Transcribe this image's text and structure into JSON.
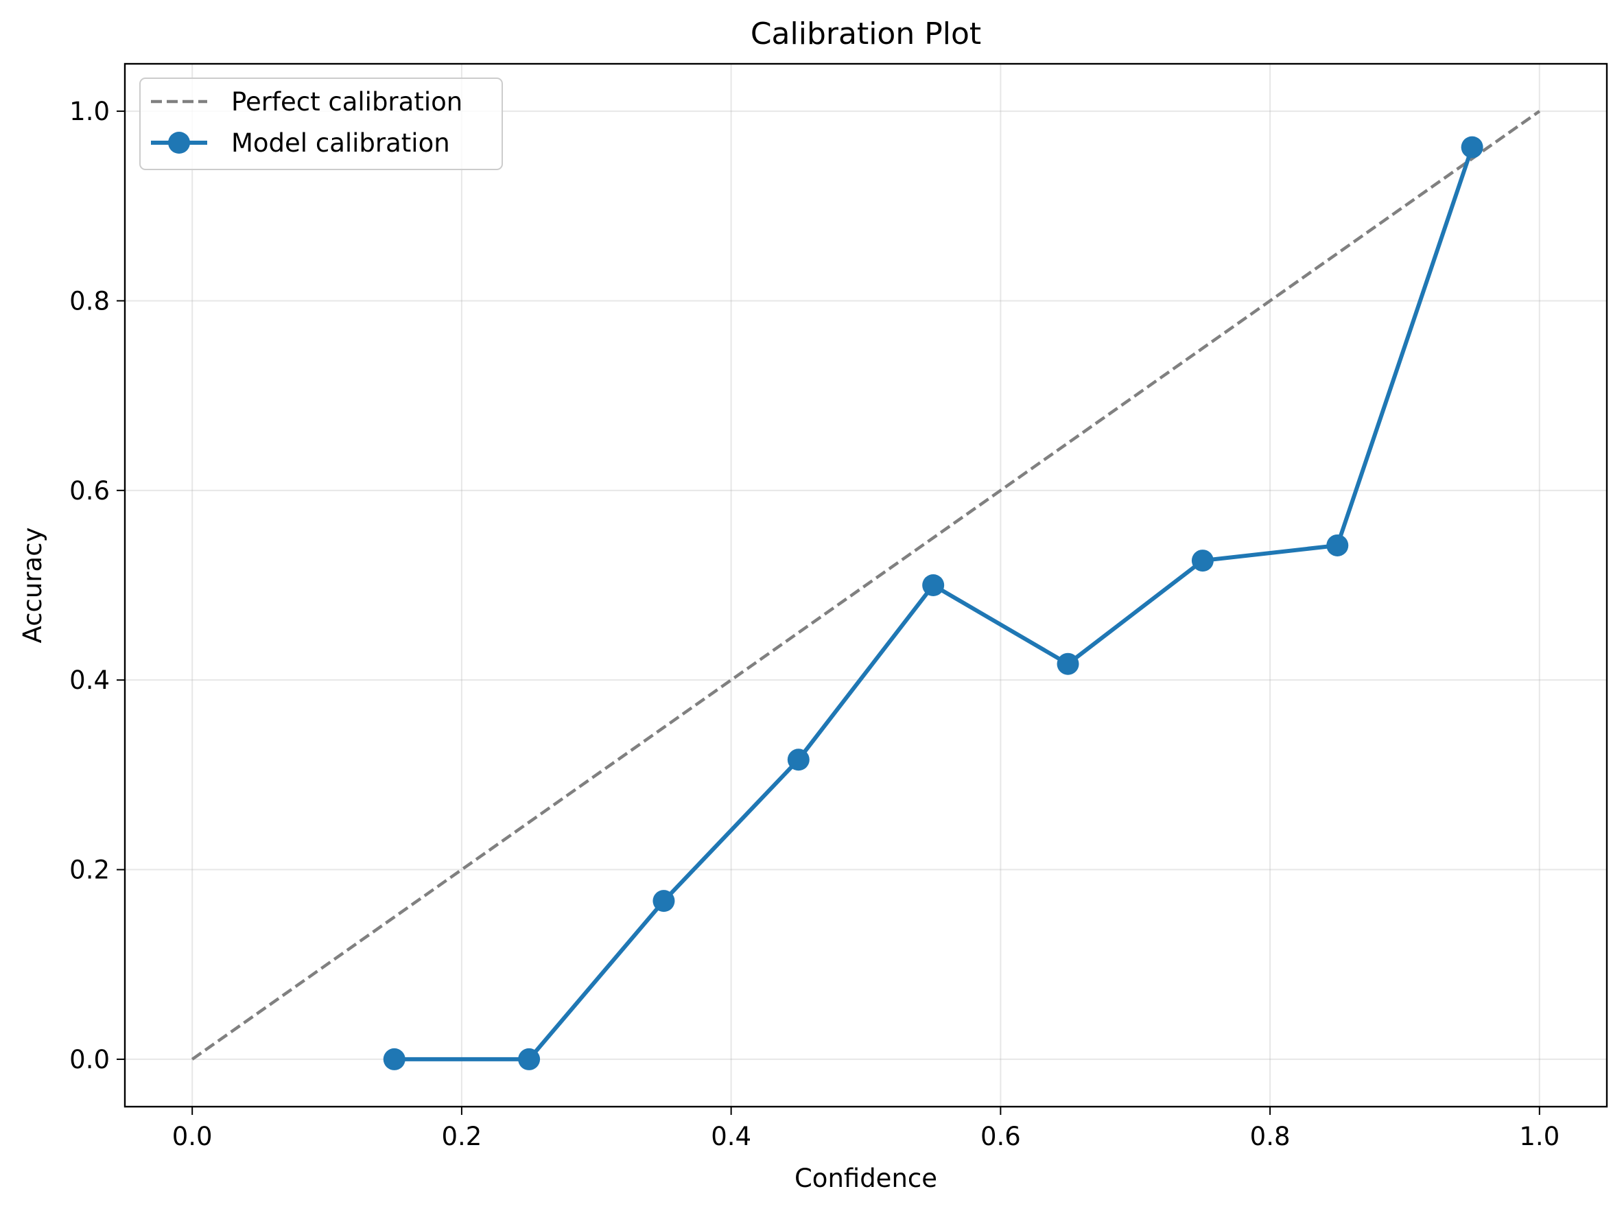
{
  "chart_data": {
    "type": "line",
    "title": "Calibration Plot",
    "xlabel": "Confidence",
    "ylabel": "Accuracy",
    "xlim": [
      -0.05,
      1.05
    ],
    "ylim": [
      -0.05,
      1.05
    ],
    "xticks": [
      0.0,
      0.2,
      0.4,
      0.6,
      0.8,
      1.0
    ],
    "yticks": [
      0.0,
      0.2,
      0.4,
      0.6,
      0.8,
      1.0
    ],
    "xtick_labels": [
      "0.0",
      "0.2",
      "0.4",
      "0.6",
      "0.8",
      "1.0"
    ],
    "ytick_labels": [
      "0.0",
      "0.2",
      "0.4",
      "0.6",
      "0.8",
      "1.0"
    ],
    "grid": true,
    "legend_position": "upper-left",
    "series": [
      {
        "name": "Perfect calibration",
        "style": "dashed",
        "color": "#808080",
        "x": [
          0.0,
          1.0
        ],
        "y": [
          0.0,
          1.0
        ]
      },
      {
        "name": "Model calibration",
        "style": "solid-markers",
        "color": "#1f77b4",
        "x": [
          0.15,
          0.25,
          0.35,
          0.45,
          0.55,
          0.65,
          0.75,
          0.85,
          0.95
        ],
        "y": [
          0.0,
          0.0,
          0.167,
          0.316,
          0.5,
          0.417,
          0.526,
          0.542,
          0.962
        ]
      }
    ]
  }
}
